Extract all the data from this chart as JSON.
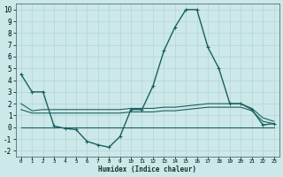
{
  "xlabel": "Humidex (Indice chaleur)",
  "background_color": "#cce8e8",
  "grid_color": "#b8d8d8",
  "line_color": "#1a6060",
  "xlim": [
    -0.5,
    23.5
  ],
  "ylim": [
    -2.5,
    10.5
  ],
  "x_ticks": [
    0,
    1,
    2,
    3,
    4,
    5,
    6,
    7,
    8,
    9,
    10,
    11,
    12,
    13,
    14,
    15,
    16,
    17,
    18,
    19,
    20,
    21,
    22,
    23
  ],
  "y_ticks": [
    -2,
    -1,
    0,
    1,
    2,
    3,
    4,
    5,
    6,
    7,
    8,
    9,
    10
  ],
  "series": [
    {
      "x": [
        0,
        1,
        2,
        3,
        4,
        5,
        6,
        7,
        8,
        9,
        10,
        11,
        12,
        13,
        14,
        15,
        16,
        17,
        18,
        19,
        20,
        21,
        22,
        23
      ],
      "y": [
        4.5,
        3.0,
        3.0,
        0.1,
        -0.1,
        -0.2,
        -1.2,
        -1.5,
        -1.7,
        -0.8,
        1.5,
        1.5,
        3.5,
        6.5,
        8.5,
        10.0,
        10.0,
        6.8,
        5.0,
        2.0,
        2.0,
        1.5,
        0.2,
        0.3
      ],
      "marker": "+",
      "linewidth": 1.0
    },
    {
      "x": [
        0,
        1,
        2,
        3,
        4,
        5,
        6,
        7,
        8,
        9,
        10,
        11,
        12,
        13,
        14,
        15,
        16,
        17,
        18,
        19,
        20,
        21,
        22,
        23
      ],
      "y": [
        2.0,
        1.4,
        1.5,
        1.5,
        1.5,
        1.5,
        1.5,
        1.5,
        1.5,
        1.5,
        1.6,
        1.6,
        1.6,
        1.7,
        1.7,
        1.8,
        1.9,
        2.0,
        2.0,
        2.0,
        2.0,
        1.6,
        0.8,
        0.5
      ],
      "marker": null,
      "linewidth": 0.8
    },
    {
      "x": [
        0,
        1,
        2,
        3,
        4,
        5,
        6,
        7,
        8,
        9,
        10,
        11,
        12,
        13,
        14,
        15,
        16,
        17,
        18,
        19,
        20,
        21,
        22,
        23
      ],
      "y": [
        1.5,
        1.2,
        1.2,
        1.2,
        1.2,
        1.2,
        1.2,
        1.2,
        1.2,
        1.2,
        1.3,
        1.3,
        1.3,
        1.4,
        1.4,
        1.5,
        1.6,
        1.7,
        1.7,
        1.7,
        1.7,
        1.4,
        0.5,
        0.3
      ],
      "marker": null,
      "linewidth": 0.8
    },
    {
      "x": [
        0,
        1,
        2,
        3,
        4,
        5,
        6,
        7,
        8,
        9,
        10,
        11,
        12,
        13,
        14,
        15,
        16,
        17,
        18,
        19,
        20,
        21,
        22,
        23
      ],
      "y": [
        0.0,
        0.0,
        0.0,
        0.0,
        0.0,
        0.0,
        0.0,
        0.0,
        0.0,
        0.0,
        0.0,
        0.0,
        0.0,
        0.0,
        0.0,
        0.0,
        0.0,
        0.0,
        0.0,
        0.0,
        0.0,
        0.0,
        0.0,
        0.0
      ],
      "marker": null,
      "linewidth": 0.8
    }
  ]
}
